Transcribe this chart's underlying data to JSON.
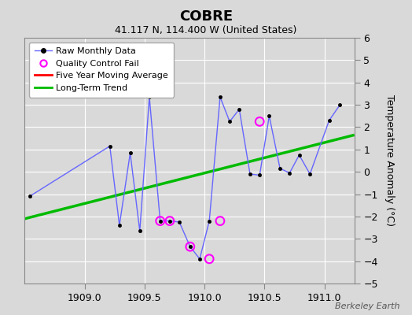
{
  "title": "COBRE",
  "subtitle": "41.117 N, 114.400 W (United States)",
  "watermark": "Berkeley Earth",
  "ylabel": "Temperature Anomaly (°C)",
  "xlim": [
    1908.5,
    1911.25
  ],
  "ylim": [
    -5,
    6
  ],
  "yticks": [
    -5,
    -4,
    -3,
    -2,
    -1,
    0,
    1,
    2,
    3,
    4,
    5,
    6
  ],
  "xticks": [
    1909.0,
    1909.5,
    1910.0,
    1910.5,
    1911.0
  ],
  "background_color": "#d9d9d9",
  "raw_x": [
    1908.54,
    1909.21,
    1909.29,
    1909.38,
    1909.46,
    1909.54,
    1909.63,
    1909.71,
    1909.79,
    1909.88,
    1909.96,
    1910.04,
    1910.13,
    1910.21,
    1910.29,
    1910.38,
    1910.46,
    1910.54,
    1910.63,
    1910.71,
    1910.79,
    1910.88,
    1911.04,
    1911.13
  ],
  "raw_y": [
    -1.1,
    1.15,
    -2.4,
    0.85,
    -2.65,
    3.35,
    -2.2,
    -2.2,
    -2.25,
    -3.35,
    -3.9,
    -2.2,
    3.35,
    2.25,
    2.8,
    -0.1,
    -0.15,
    2.5,
    0.15,
    -0.05,
    0.75,
    -0.1,
    2.3,
    3.0
  ],
  "qc_fail_x": [
    1909.63,
    1909.71,
    1909.88,
    1910.04,
    1910.13,
    1910.46
  ],
  "qc_fail_y": [
    -2.2,
    -2.2,
    -3.35,
    -3.9,
    -2.2,
    2.25
  ],
  "trend_x": [
    1908.5,
    1911.25
  ],
  "trend_y": [
    -2.1,
    1.65
  ],
  "raw_line_color": "#6666ff",
  "raw_marker_color": "#000000",
  "qc_color": "#ff00ff",
  "trend_color": "#00bb00",
  "five_yr_color": "#ff0000",
  "grid_color": "#ffffff",
  "legend_bg": "#ffffff",
  "spine_color": "#888888"
}
